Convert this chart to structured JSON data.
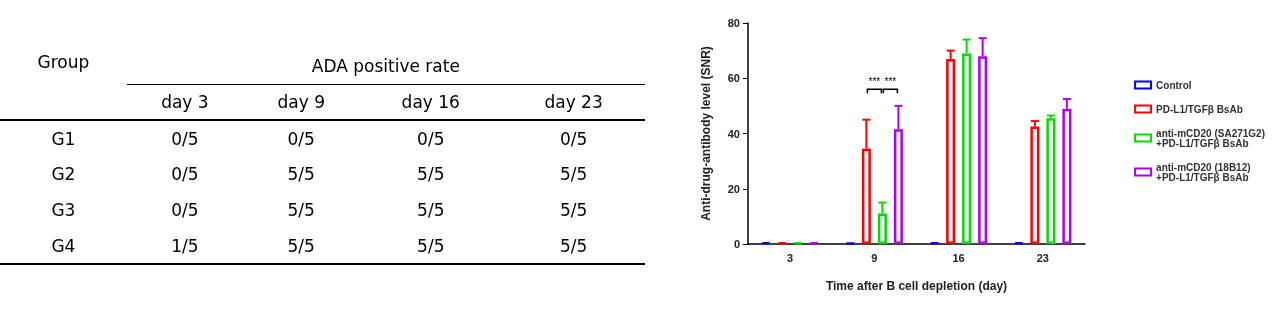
{
  "chart_data": [
    {
      "type": "other",
      "title": "ADA positive rate",
      "ylabel": "Group",
      "categories": [
        "day 3",
        "day 9",
        "day 16",
        "day 23"
      ],
      "y_categories": [
        "G1",
        "G2",
        "G3",
        "G4"
      ],
      "cell_labels": [
        [
          "0/5",
          "0/5",
          "0/5",
          "0/5"
        ],
        [
          "0/5",
          "5/5",
          "5/5",
          "5/5"
        ],
        [
          "0/5",
          "5/5",
          "5/5",
          "5/5"
        ],
        [
          "1/5",
          "5/5",
          "5/5",
          "5/5"
        ]
      ]
    },
    {
      "type": "bar",
      "xlabel": "Time after B cell depletion (day)",
      "ylabel": "Anti-drug-antibody level (SNR)",
      "categories": [
        "3",
        "9",
        "16",
        "23"
      ],
      "ylim": [
        0,
        80
      ],
      "yticks": [
        0,
        20,
        40,
        60,
        80
      ],
      "grid": false,
      "legend": "right",
      "series": [
        {
          "name": "Control",
          "color": "#0000ff",
          "values": [
            0.5,
            0.3,
            0.5,
            0.5
          ]
        },
        {
          "name": "PD-L1/TGFβ BsAb",
          "color": "#ff0000",
          "values": [
            0.5,
            34.5,
            67,
            42.5
          ],
          "errors": [
            null,
            [
              34.5,
              45
            ],
            [
              67,
              70
            ],
            [
              42.5,
              44.5
            ]
          ]
        },
        {
          "name": "anti-mCD20 (SA271G2)\n+PD-L1/TGFβ BsAb",
          "color": "#00dd00",
          "values": [
            0.5,
            11,
            69,
            45.5
          ],
          "errors": [
            null,
            [
              11,
              15
            ],
            [
              69,
              74
            ],
            [
              45.5,
              46.5
            ]
          ]
        },
        {
          "name": "anti-mCD20 (18B12)\n+PD-L1/TGFβ BsAb",
          "color": "#aa00ff",
          "values": [
            0.5,
            41.5,
            68,
            49
          ],
          "errors": [
            null,
            [
              41.5,
              50
            ],
            [
              68,
              74.5
            ],
            [
              49,
              52.5
            ]
          ]
        }
      ],
      "annotations": [
        "***",
        "***"
      ]
    }
  ]
}
